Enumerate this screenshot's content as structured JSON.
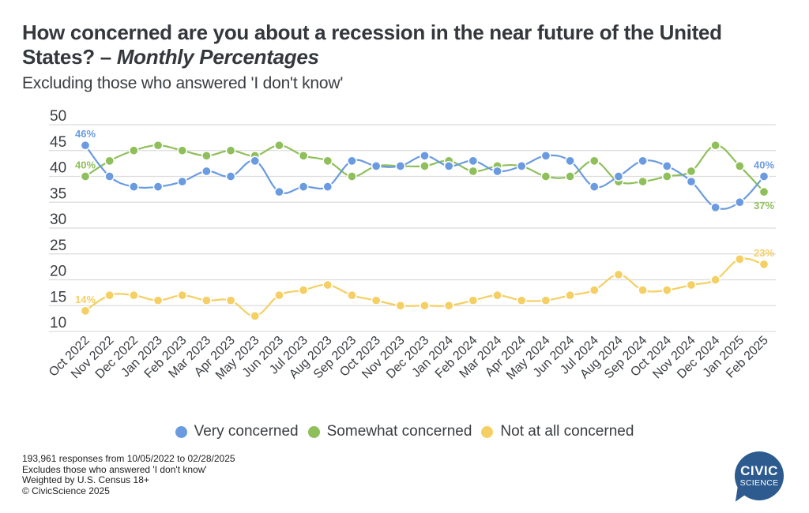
{
  "header": {
    "title_main": "How concerned are you about a recession in the near future of the United States? – ",
    "title_italic": "Monthly Percentages",
    "subtitle": "Excluding those who answered 'I don't know'"
  },
  "legend": [
    {
      "label": "Very concerned",
      "color": "#6a9be0"
    },
    {
      "label": "Somewhat concerned",
      "color": "#8fbf5a"
    },
    {
      "label": "Not at all concerned",
      "color": "#f5cf63"
    }
  ],
  "footer": {
    "lines": [
      "193,961 responses from 10/05/2022 to 02/28/2025",
      "Excludes those who answered 'I don't know'",
      "Weighted by U.S. Census 18+",
      "© CivicScience 2025"
    ]
  },
  "logo": {
    "line1": "CIVIC",
    "line2": "SCIENCE",
    "color": "#2d5b8f"
  },
  "chart_data": {
    "type": "line",
    "title": "How concerned are you about a recession in the near future of the United States? – Monthly Percentages",
    "subtitle": "Excluding those who answered 'I don't know'",
    "xlabel": "",
    "ylabel": "",
    "ylim": [
      10,
      50
    ],
    "yticks": [
      10,
      15,
      20,
      25,
      30,
      35,
      40,
      45,
      50
    ],
    "grid": true,
    "legend_position": "bottom-center",
    "x": [
      "Oct 2022",
      "Nov 2022",
      "Dec 2022",
      "Jan 2023",
      "Feb 2023",
      "Mar 2023",
      "Apr 2023",
      "May 2023",
      "Jun 2023",
      "Jul 2023",
      "Aug 2023",
      "Sep 2023",
      "Oct 2023",
      "Nov 2023",
      "Dec 2023",
      "Jan 2024",
      "Feb 2024",
      "Mar 2024",
      "Apr 2024",
      "May 2024",
      "Jun 2024",
      "Jul 2024",
      "Aug 2024",
      "Sep 2024",
      "Oct 2024",
      "Nov 2024",
      "Dec 2024",
      "Jan 2025",
      "Feb 2025"
    ],
    "series": [
      {
        "name": "Very concerned",
        "color": "#6a9be0",
        "values": [
          46,
          40,
          38,
          38,
          39,
          41,
          40,
          43,
          37,
          38,
          38,
          43,
          42,
          42,
          44,
          42,
          43,
          41,
          42,
          44,
          43,
          38,
          40,
          43,
          42,
          39,
          34,
          35,
          40
        ],
        "annotations": [
          {
            "index": 0,
            "text": "46%",
            "position": "above"
          },
          {
            "index": 28,
            "text": "40%",
            "position": "above"
          }
        ]
      },
      {
        "name": "Somewhat concerned",
        "color": "#8fbf5a",
        "values": [
          40,
          43,
          45,
          46,
          45,
          44,
          45,
          44,
          46,
          44,
          43,
          40,
          42,
          42,
          42,
          43,
          41,
          42,
          42,
          40,
          40,
          43,
          39,
          39,
          40,
          41,
          46,
          42,
          37
        ],
        "annotations": [
          {
            "index": 0,
            "text": "40%",
            "position": "above"
          },
          {
            "index": 28,
            "text": "37%",
            "position": "below"
          }
        ]
      },
      {
        "name": "Not at all concerned",
        "color": "#f5cf63",
        "values": [
          14,
          17,
          17,
          16,
          17,
          16,
          16,
          13,
          17,
          18,
          19,
          17,
          16,
          15,
          15,
          15,
          16,
          17,
          16,
          16,
          17,
          18,
          21,
          18,
          18,
          19,
          20,
          24,
          23
        ],
        "annotations": [
          {
            "index": 0,
            "text": "14%",
            "position": "above"
          },
          {
            "index": 28,
            "text": "23%",
            "position": "above"
          }
        ]
      }
    ]
  }
}
